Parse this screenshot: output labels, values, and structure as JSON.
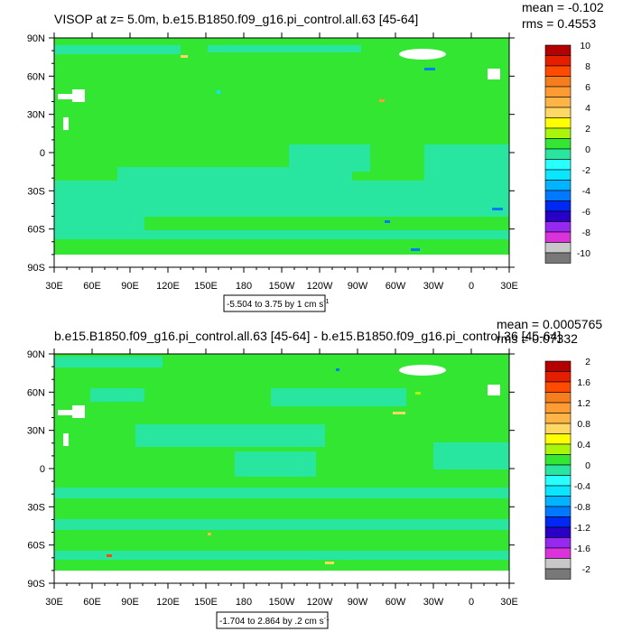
{
  "chart_data": [
    {
      "type": "heatmap",
      "title": "VISOP at z=   5.0m, b.e15.B1850.f09_g16.pi_control.all.63 [45-64]",
      "stats": {
        "mean": "mean = -0.102",
        "rms": "rms = 0.4553"
      },
      "y_ticks": [
        "90N",
        "60N",
        "30N",
        "0",
        "30S",
        "60S",
        "90S"
      ],
      "x_ticks": [
        "30E",
        "60E",
        "90E",
        "120E",
        "150E",
        "180",
        "150W",
        "120W",
        "90W",
        "60W",
        "30W",
        "0",
        "30E"
      ],
      "range_label": "-5.504 to 3.75 by 1 cm s",
      "range_sup": "-1",
      "colorbar": {
        "labels": [
          "10",
          "8",
          "6",
          "4",
          "2",
          "0",
          "-2",
          "-4",
          "-6",
          "-8",
          "-10"
        ],
        "colors": [
          "#b40000",
          "#e61e00",
          "#ff4b00",
          "#f57d1e",
          "#ff9b32",
          "#ffb446",
          "#ffd764",
          "#ffff00",
          "#aaf50a",
          "#32e632",
          "#28e6a0",
          "#28ffff",
          "#0ae6ff",
          "#00b4ff",
          "#0078ff",
          "#0028f5",
          "#2800c8",
          "#9628f0",
          "#dc32dc",
          "#c8c8c8",
          "#787878"
        ]
      },
      "ocean_color": "#32e632",
      "secondary_color": "#28e6a0"
    },
    {
      "type": "heatmap",
      "title": "b.e15.B1850.f09_g16.pi_control.all.63 [45-64] - b.e15.B1850.f09_g16.pi_control.36 [45-64]",
      "stats": {
        "mean": "mean = 0.0005765",
        "rms": "rms = 0.07332"
      },
      "y_ticks": [
        "90N",
        "60N",
        "30N",
        "0",
        "30S",
        "60S",
        "90S"
      ],
      "x_ticks": [
        "30E",
        "60E",
        "90E",
        "120E",
        "150E",
        "180",
        "150W",
        "120W",
        "90W",
        "60W",
        "30W",
        "0",
        "30E"
      ],
      "range_label": "-1.704 to 2.864 by .2 cm s",
      "range_sup": "-1",
      "colorbar": {
        "labels": [
          "2",
          "1.6",
          "1.2",
          "0.8",
          "0.4",
          "0",
          "-0.4",
          "-0.8",
          "-1.2",
          "-1.6",
          "-2"
        ],
        "colors": [
          "#b40000",
          "#e61e00",
          "#ff4b00",
          "#f57d1e",
          "#ff9b32",
          "#ffb446",
          "#ffd764",
          "#ffff00",
          "#aaf50a",
          "#32e632",
          "#28e6a0",
          "#28ffff",
          "#0ae6ff",
          "#00b4ff",
          "#0078ff",
          "#0028f5",
          "#2800c8",
          "#9628f0",
          "#dc32dc",
          "#c8c8c8",
          "#787878"
        ]
      },
      "ocean_color": "#32e632",
      "secondary_color": "#28e6a0"
    }
  ]
}
